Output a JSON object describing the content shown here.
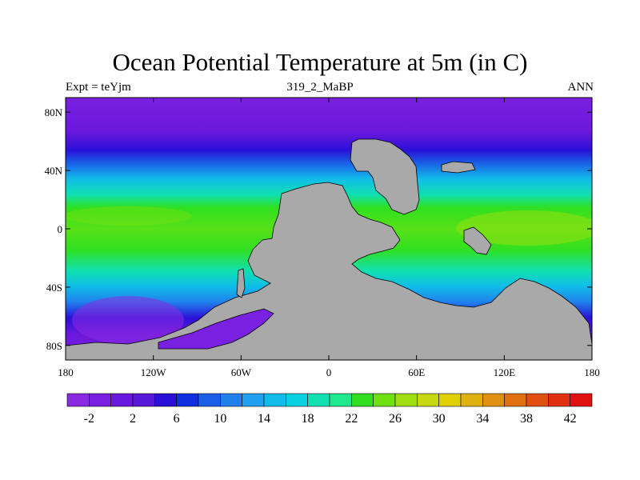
{
  "title": "Ocean Potential Temperature at 5m (in C)",
  "subtitle_left": "Expt = teYjm",
  "subtitle_center": "319_2_MaBP",
  "subtitle_right": "ANN",
  "y_ticks": [
    {
      "label": "80N",
      "lat": 80
    },
    {
      "label": "40N",
      "lat": 40
    },
    {
      "label": "0",
      "lat": 0
    },
    {
      "label": "40S",
      "lat": -40
    },
    {
      "label": "80S",
      "lat": -80
    }
  ],
  "x_ticks": [
    {
      "label": "180",
      "lon": -180
    },
    {
      "label": "120W",
      "lon": -120
    },
    {
      "label": "60W",
      "lon": -60
    },
    {
      "label": "0",
      "lon": 0
    },
    {
      "label": "60E",
      "lon": 60
    },
    {
      "label": "120E",
      "lon": 120
    },
    {
      "label": "180",
      "lon": 180
    }
  ],
  "colorbar": {
    "labels": [
      "-2",
      "2",
      "6",
      "10",
      "14",
      "18",
      "22",
      "26",
      "30",
      "34",
      "38",
      "42"
    ],
    "colors": [
      "#8a2be2",
      "#7a20e0",
      "#6a18dc",
      "#5818d8",
      "#2a10d8",
      "#1030e0",
      "#1a60e8",
      "#2080ec",
      "#20a0ee",
      "#10bcea",
      "#08d0e0",
      "#10e0b0",
      "#1ee890",
      "#30e020",
      "#70e010",
      "#a0e010",
      "#c8d810",
      "#e0d000",
      "#e0b010",
      "#e09010",
      "#e07010",
      "#e05010",
      "#e03010",
      "#e01010"
    ]
  },
  "land_color": "#a9a9a9"
}
